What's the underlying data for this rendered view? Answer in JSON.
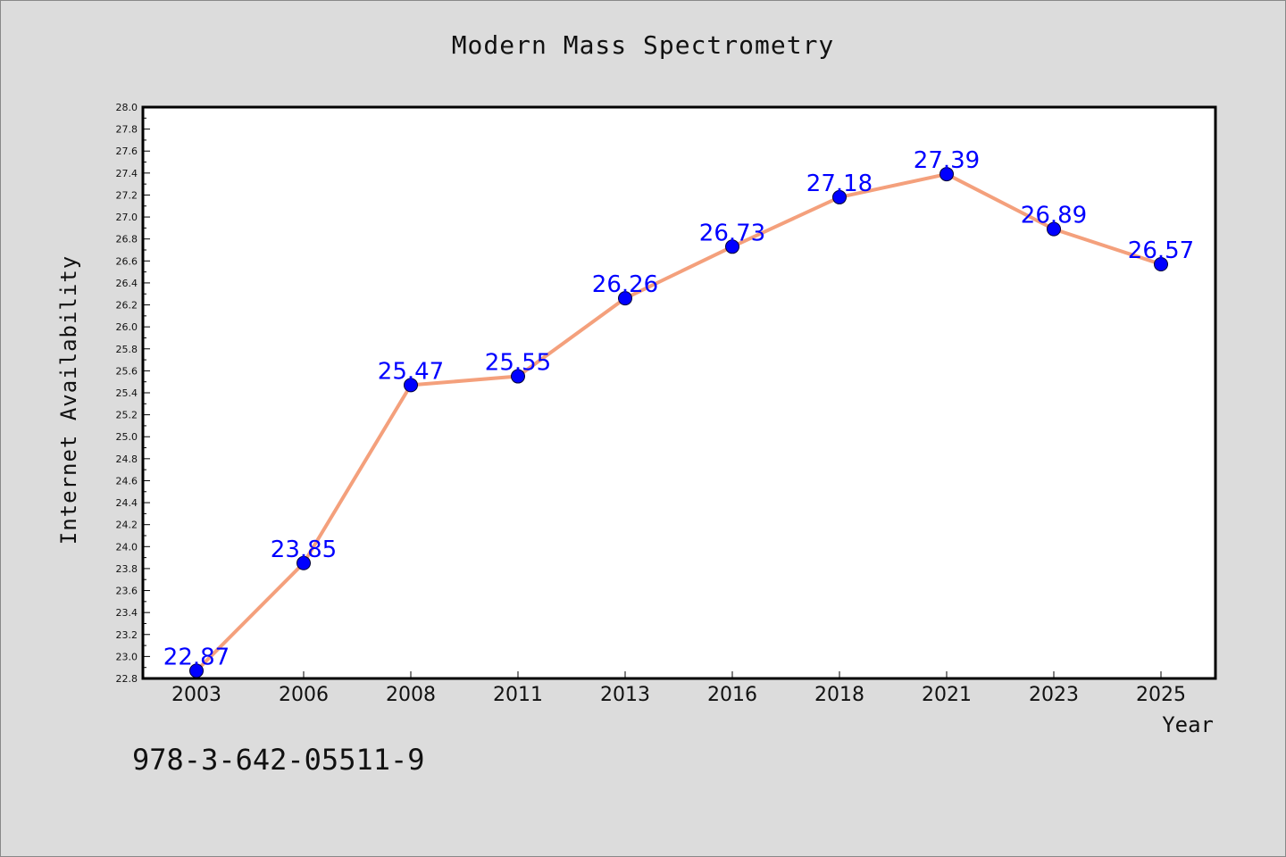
{
  "chart_data": {
    "type": "line",
    "title": "Modern Mass Spectrometry",
    "xlabel": "Year",
    "ylabel": "Internet Availability",
    "categories": [
      "2003",
      "2006",
      "2008",
      "2011",
      "2013",
      "2016",
      "2018",
      "2021",
      "2023",
      "2025"
    ],
    "series": [
      {
        "values": [
          22.87,
          23.85,
          25.47,
          25.55,
          26.26,
          26.73,
          27.18,
          27.39,
          26.89,
          26.57
        ]
      }
    ],
    "value_labels": [
      "22.87",
      "23.85",
      "25.47",
      "25.55",
      "26.26",
      "26.73",
      "27.18",
      "27.39",
      "26.89",
      "26.57"
    ],
    "ylim": [
      22.8,
      28.0
    ],
    "ytick_labels": [
      "22.8",
      "23.0",
      "23.2",
      "23.4",
      "23.6",
      "23.8",
      "24.0",
      "24.2",
      "24.4",
      "24.6",
      "24.8",
      "25.0",
      "25.2",
      "25.4",
      "25.6",
      "25.8",
      "26.0",
      "26.2",
      "26.4",
      "26.6",
      "26.8",
      "27.0",
      "27.2",
      "27.4",
      "27.6",
      "27.8",
      "28.0"
    ],
    "grid": false,
    "legend": "none",
    "colors": {
      "line": "#f4a07c",
      "marker": "#0000ff",
      "value_label": "#0000ff",
      "background": "#dcdcdc",
      "plot_background": "#ffffff"
    }
  },
  "footer": {
    "isbn": "978-3-642-05511-9"
  }
}
